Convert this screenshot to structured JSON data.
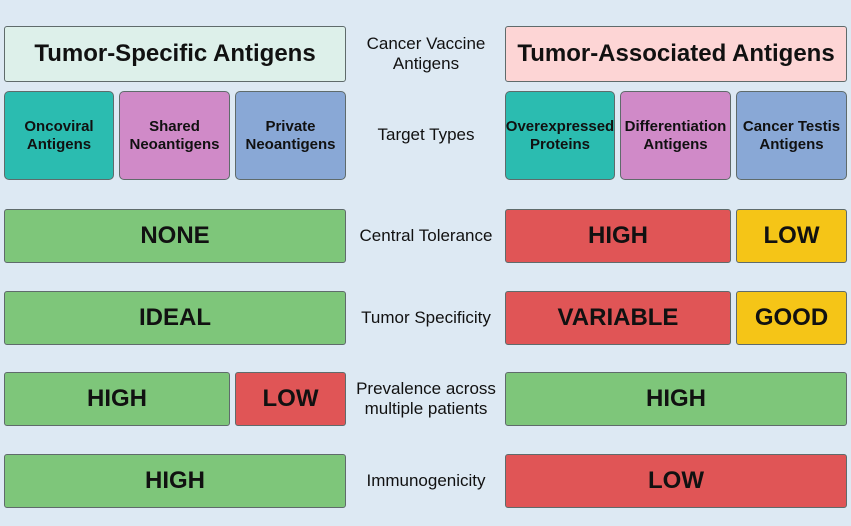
{
  "headers": {
    "tsa": "Tumor-Specific Antigens",
    "center": "Cancer  Vaccine Antigens",
    "taa": "Tumor-Associated Antigens"
  },
  "target_types": {
    "label": "Target Types",
    "tsa": [
      "Oncoviral Antigens",
      "Shared Neoantigens",
      "Private Neoantigens"
    ],
    "taa": [
      "Overexpressed Proteins",
      "Differentiation Antigens",
      "Cancer Testis Antigens"
    ]
  },
  "rows": [
    {
      "label": "Central Tolerance",
      "tsa": [
        "NONE"
      ],
      "taa": [
        "HIGH",
        "LOW"
      ]
    },
    {
      "label": "Tumor Specificity",
      "tsa": [
        "IDEAL"
      ],
      "taa": [
        "VARIABLE",
        "GOOD"
      ]
    },
    {
      "label": "Prevalence across multiple patients",
      "tsa": [
        "HIGH",
        "LOW"
      ],
      "taa": [
        "HIGH"
      ]
    },
    {
      "label": "Immunogenicity",
      "tsa": [
        "HIGH"
      ],
      "taa": [
        "LOW"
      ]
    }
  ],
  "colors": {
    "background": "#dde9f3",
    "tsa_header": "#ddf0ea",
    "taa_header": "#fdd5d5",
    "teal": "#2bbcb0",
    "pink": "#d08ac8",
    "blue": "#89a8d6",
    "green": "#7ec67a",
    "red": "#e05556",
    "yellow": "#f5c517"
  }
}
